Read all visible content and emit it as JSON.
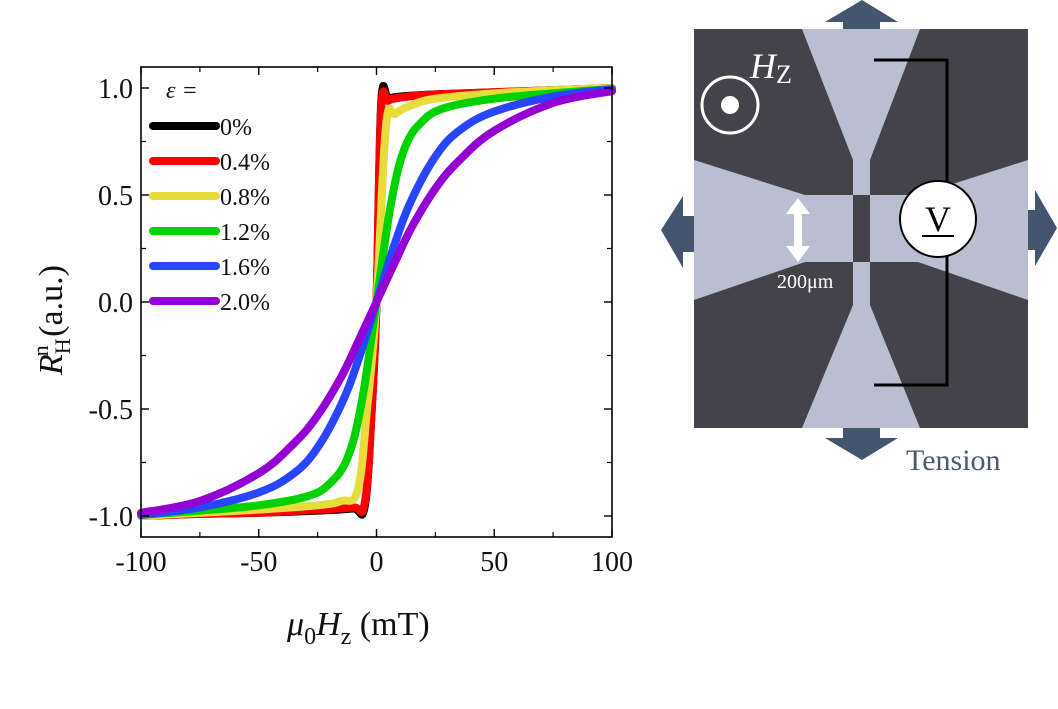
{
  "chart_data": {
    "type": "line",
    "title": "",
    "xlabel": "μ0Hz (mT)",
    "xlabel_parts": {
      "mu": "μ",
      "sub0": "0",
      "H": "H",
      "subz": "z",
      "unit": " (mT)"
    },
    "ylabel": "R_H^n (a.u.)",
    "ylabel_parts": {
      "R": "R",
      "sub": "H",
      "sup": "n",
      "unit": " (a.u.)"
    },
    "xlim": [
      -100,
      100
    ],
    "ylim": [
      -1.1,
      1.1
    ],
    "xticks": [
      -100,
      -50,
      0,
      50,
      100
    ],
    "xtick_labels": [
      "-100",
      "-50",
      "0",
      "50",
      "100"
    ],
    "yticks": [
      -1.0,
      -0.5,
      0.0,
      0.5,
      1.0
    ],
    "ytick_labels": [
      "-1.0",
      "-0.5",
      "0.0",
      "0.5",
      "1.0"
    ],
    "grid": false,
    "legend": {
      "title": "ε =",
      "placement": "top-left"
    },
    "series": [
      {
        "name": "0%",
        "color": "#000000",
        "x": [
          -100,
          -75,
          -50,
          -25,
          -10,
          -5,
          -2,
          0,
          2,
          5,
          10,
          25,
          50,
          75,
          100
        ],
        "y": [
          -1.0,
          -0.99,
          -0.985,
          -0.975,
          -0.965,
          -0.955,
          -0.5,
          0.0,
          0.93,
          0.95,
          0.96,
          0.97,
          0.98,
          0.99,
          1.0
        ]
      },
      {
        "name": "0.4%",
        "color": "#ff0000",
        "x": [
          -100,
          -75,
          -50,
          -25,
          -10,
          -5,
          -2,
          0,
          2,
          5,
          10,
          25,
          50,
          75,
          100
        ],
        "y": [
          -1.0,
          -0.99,
          -0.985,
          -0.97,
          -0.96,
          -0.94,
          -0.5,
          0.0,
          0.9,
          0.94,
          0.955,
          0.97,
          0.98,
          0.99,
          1.0
        ]
      },
      {
        "name": "0.8%",
        "color": "#e6dc3c",
        "x": [
          -100,
          -75,
          -50,
          -25,
          -15,
          -8,
          -4,
          0,
          4,
          8,
          15,
          25,
          50,
          75,
          100
        ],
        "y": [
          -1.0,
          -0.985,
          -0.97,
          -0.95,
          -0.93,
          -0.88,
          -0.5,
          0.0,
          0.82,
          0.88,
          0.92,
          0.95,
          0.975,
          0.99,
          1.0
        ]
      },
      {
        "name": "1.2%",
        "color": "#00d200",
        "x": [
          -100,
          -75,
          -50,
          -30,
          -20,
          -12,
          -6,
          0,
          6,
          12,
          20,
          30,
          50,
          75,
          100
        ],
        "y": [
          -0.995,
          -0.975,
          -0.95,
          -0.91,
          -0.85,
          -0.72,
          -0.45,
          0.0,
          0.45,
          0.72,
          0.85,
          0.91,
          0.95,
          0.975,
          0.995
        ]
      },
      {
        "name": "1.6%",
        "color": "#2846ff",
        "x": [
          -100,
          -75,
          -50,
          -35,
          -25,
          -15,
          -8,
          0,
          8,
          15,
          25,
          35,
          50,
          75,
          100
        ],
        "y": [
          -0.995,
          -0.96,
          -0.89,
          -0.8,
          -0.68,
          -0.48,
          -0.28,
          0.0,
          0.28,
          0.48,
          0.68,
          0.8,
          0.89,
          0.96,
          0.995
        ]
      },
      {
        "name": "2.0%",
        "color": "#9400d3",
        "x": [
          -100,
          -75,
          -50,
          -35,
          -25,
          -15,
          -8,
          0,
          8,
          15,
          25,
          35,
          50,
          75,
          100
        ],
        "y": [
          -0.985,
          -0.93,
          -0.8,
          -0.66,
          -0.53,
          -0.35,
          -0.19,
          0.0,
          0.19,
          0.35,
          0.53,
          0.66,
          0.8,
          0.93,
          0.985
        ]
      }
    ]
  },
  "device_panel": {
    "field_label": {
      "H": "H",
      "sub": "Z"
    },
    "field_symbol": "out-of-plane-field-icon",
    "scale_label": "200μm",
    "voltmeter_label": "V",
    "tension_label": "Tension",
    "colors": {
      "substrate": "#45434a",
      "electrode": "#b9bfd1",
      "arrow": "#44566e"
    }
  }
}
